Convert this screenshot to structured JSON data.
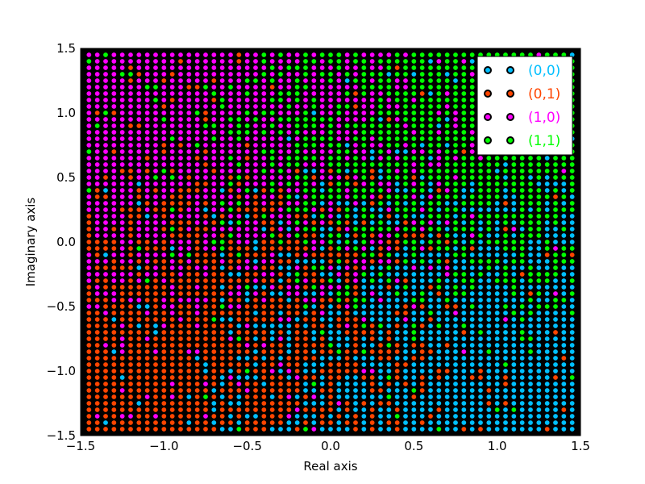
{
  "chart_data": {
    "type": "scatter",
    "title": "",
    "xlabel": "Real axis",
    "ylabel": "Imaginary axis",
    "xlim": [
      -1.5,
      1.5
    ],
    "ylim": [
      -1.5,
      1.5
    ],
    "grid": false,
    "background": "#000000",
    "x_ticks": [
      -1.5,
      -1.0,
      -0.5,
      0.0,
      0.5,
      1.0,
      1.5
    ],
    "x_tick_labels": [
      "−1.5",
      "−1.0",
      "−0.5",
      "0.0",
      "0.5",
      "1.0",
      "1.5"
    ],
    "y_ticks": [
      -1.5,
      -1.0,
      -0.5,
      0.0,
      0.5,
      1.0,
      1.5
    ],
    "y_tick_labels": [
      "−1.5",
      "−1.0",
      "−0.5",
      "0.0",
      "0.5",
      "1.0",
      "1.5"
    ],
    "grid_points": {
      "x_start": -1.45,
      "x_end": 1.45,
      "x_step": 0.05,
      "y_start": -1.45,
      "y_end": 1.45,
      "y_step": 0.05
    },
    "legend_position": "upper right",
    "series": [
      {
        "name": "(0,0)",
        "color": "#00bfff",
        "region": "Re > 0, Im < 0"
      },
      {
        "name": "(0,1)",
        "color": "#ff4500",
        "region": "Re < 0, Im < 0"
      },
      {
        "name": "(1,0)",
        "color": "#ff00ff",
        "region": "Re < 0, Im > 0"
      },
      {
        "name": "(1,1)",
        "color": "#00ff00",
        "region": "Re > 0, Im > 0"
      }
    ]
  }
}
